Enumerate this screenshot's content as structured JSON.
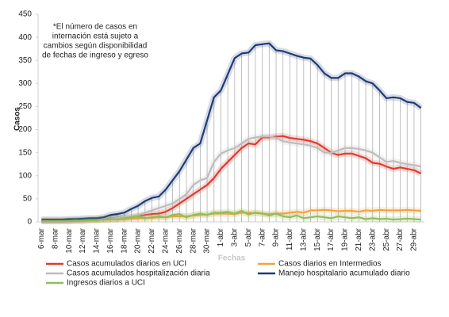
{
  "chart_data": {
    "type": "line",
    "annotation": [
      "*El número de casos en",
      "internación está sujeto a",
      "cambios según disponibilidad",
      "de fechas de ingreso y egreso"
    ],
    "y_label": "Casos",
    "x_label": "Fechas",
    "categories": [
      "6-mar",
      null,
      "8-mar",
      null,
      "10-mar",
      null,
      "12-mar",
      null,
      "14-mar",
      null,
      "16-mar",
      null,
      "18-mar",
      null,
      "20-mar",
      null,
      "22-mar",
      null,
      "24-mar",
      null,
      "26-mar",
      null,
      "28-mar",
      null,
      "30-mar",
      null,
      "1-abr",
      null,
      "3-abr",
      null,
      "5-abr",
      null,
      "7-abr",
      null,
      "9-abr",
      null,
      "11-abr",
      null,
      "13-abr",
      null,
      "15-abr",
      null,
      "17-abr",
      null,
      "19-abr",
      null,
      "21-abr",
      null,
      "23-abr",
      null,
      "25-abr",
      null,
      "27-abr",
      null,
      "29-abr",
      null
    ],
    "series": [
      {
        "name": "Casos acumulados diarios en UCI",
        "color": "#e03a2f",
        "values": [
          2,
          2,
          2,
          2,
          2,
          3,
          3,
          4,
          5,
          6,
          7,
          8,
          9,
          10,
          12,
          15,
          17,
          18,
          22,
          30,
          40,
          50,
          60,
          70,
          80,
          95,
          115,
          130,
          145,
          160,
          170,
          168,
          183,
          183,
          185,
          186,
          182,
          180,
          178,
          175,
          170,
          160,
          150,
          145,
          148,
          148,
          143,
          138,
          128,
          126,
          120,
          115,
          118,
          115,
          112,
          105
        ]
      },
      {
        "name": "Casos diarios en Intermedios",
        "color": "#f4a23c",
        "values": [
          2,
          2,
          2,
          2,
          2,
          3,
          3,
          4,
          4,
          5,
          5,
          6,
          6,
          7,
          8,
          8,
          9,
          10,
          10,
          12,
          12,
          12,
          14,
          15,
          16,
          18,
          18,
          18,
          17,
          20,
          20,
          19,
          18,
          17,
          18,
          18,
          20,
          22,
          20,
          25,
          25,
          26,
          25,
          23,
          24,
          24,
          22,
          25,
          24,
          26,
          25,
          25,
          25,
          26,
          25,
          24
        ]
      },
      {
        "name": "Casos acumulados hospitalización diaria",
        "color": "#bdbdbd",
        "values": [
          3,
          3,
          3,
          3,
          4,
          4,
          5,
          5,
          6,
          7,
          8,
          9,
          10,
          12,
          15,
          20,
          25,
          30,
          35,
          40,
          50,
          60,
          80,
          90,
          95,
          130,
          148,
          155,
          160,
          170,
          180,
          183,
          185,
          185,
          182,
          175,
          172,
          170,
          168,
          165,
          160,
          150,
          150,
          155,
          160,
          160,
          158,
          155,
          150,
          140,
          130,
          132,
          128,
          125,
          123,
          120
        ]
      },
      {
        "name": "Manejo hospitalario acumulado diario",
        "color": "#1f3b73",
        "values": [
          5,
          5,
          5,
          5,
          6,
          6,
          7,
          8,
          8,
          10,
          15,
          17,
          20,
          28,
          35,
          45,
          52,
          55,
          70,
          90,
          110,
          135,
          160,
          170,
          220,
          270,
          285,
          320,
          355,
          365,
          367,
          383,
          385,
          387,
          372,
          370,
          365,
          360,
          356,
          354,
          340,
          322,
          312,
          312,
          322,
          322,
          315,
          305,
          300,
          285,
          268,
          270,
          268,
          260,
          258,
          247
        ]
      },
      {
        "name": "Ingresos diarios a UCI",
        "color": "#8fbf5a",
        "values": [
          2,
          2,
          2,
          2,
          2,
          3,
          2,
          4,
          3,
          5,
          6,
          5,
          8,
          10,
          12,
          8,
          10,
          12,
          10,
          15,
          17,
          10,
          15,
          18,
          15,
          20,
          20,
          22,
          18,
          24,
          16,
          20,
          18,
          14,
          18,
          12,
          10,
          14,
          8,
          10,
          12,
          10,
          8,
          12,
          10,
          8,
          10,
          6,
          8,
          6,
          7,
          5,
          6,
          7,
          6,
          5
        ]
      }
    ],
    "ylim": [
      0,
      450
    ],
    "yticks": [
      0,
      50,
      100,
      150,
      200,
      250,
      300,
      350,
      400,
      450
    ],
    "drop_lines": true
  }
}
